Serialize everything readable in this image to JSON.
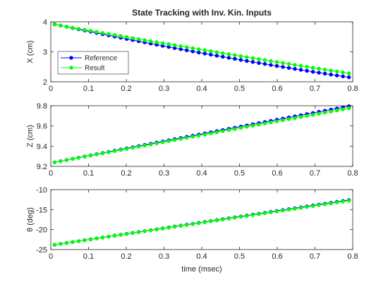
{
  "chart_data": [
    {
      "type": "line",
      "title": "State Tracking with Inv. Kin. Inputs",
      "xlabel": "",
      "ylabel": "X (cm)",
      "xlim": [
        0,
        0.8
      ],
      "ylim": [
        2,
        4
      ],
      "x_ticks": [
        "0",
        "0.1",
        "0.2",
        "0.3",
        "0.4",
        "0.5",
        "0.6",
        "0.7",
        "0.8"
      ],
      "y_ticks": [
        "2",
        "3",
        "4"
      ],
      "legend": {
        "position": "lower-left",
        "entries": [
          "Reference",
          "Result"
        ]
      },
      "x": {
        "start": 0.01,
        "end": 0.79,
        "points": 50
      },
      "series": [
        {
          "name": "Reference",
          "color": "#0000ff",
          "marker_face": "#0000ff",
          "y_start": 3.92,
          "y_end": 2.15,
          "curvature": 0.3
        },
        {
          "name": "Result",
          "color": "#00ff00",
          "marker_face": "#00ff00",
          "y_start": 3.91,
          "y_end": 2.28,
          "curvature": 0.1
        }
      ]
    },
    {
      "type": "line",
      "title": "",
      "xlabel": "",
      "ylabel": "Z (cm)",
      "xlim": [
        0,
        0.8
      ],
      "ylim": [
        9.2,
        9.8
      ],
      "x_ticks": [
        "0",
        "0.1",
        "0.2",
        "0.3",
        "0.4",
        "0.5",
        "0.6",
        "0.7",
        "0.8"
      ],
      "y_ticks": [
        "9.2",
        "9.4",
        "9.6",
        "9.8"
      ],
      "x": {
        "start": 0.01,
        "end": 0.79,
        "points": 50
      },
      "series": [
        {
          "name": "Reference",
          "color": "#0000ff",
          "marker_face": "#0000ff",
          "y_start": 9.24,
          "y_end": 9.795,
          "curvature": -0.012
        },
        {
          "name": "Result",
          "color": "#00ff00",
          "marker_face": "#00ff00",
          "y_start": 9.24,
          "y_end": 9.775,
          "curvature": -0.012
        }
      ]
    },
    {
      "type": "line",
      "title": "",
      "xlabel": "time (msec)",
      "ylabel": "θ (deg)",
      "xlim": [
        0,
        0.8
      ],
      "ylim": [
        -25,
        -10
      ],
      "x_ticks": [
        "0",
        "0.1",
        "0.2",
        "0.3",
        "0.4",
        "0.5",
        "0.6",
        "0.7",
        "0.8"
      ],
      "y_ticks": [
        "-25",
        "-20",
        "-15",
        "-10"
      ],
      "x": {
        "start": 0.01,
        "end": 0.79,
        "points": 50
      },
      "series": [
        {
          "name": "Reference",
          "color": "#0000ff",
          "marker_face": "#0000ff",
          "y_start": -23.8,
          "y_end": -12.6,
          "curvature": 0
        },
        {
          "name": "Result",
          "color": "#00ff00",
          "marker_face": "#00ff00",
          "y_start": -23.8,
          "y_end": -12.75,
          "curvature": 0
        }
      ]
    }
  ]
}
